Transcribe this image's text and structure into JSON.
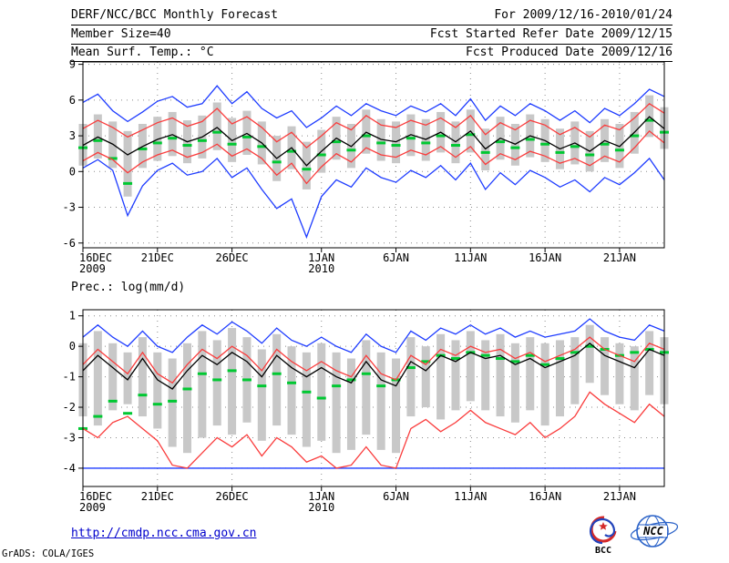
{
  "header": {
    "title": "DERF/NCC/BCC Monthly Forecast",
    "for_range": "For 2009/12/16-2010/01/24",
    "member_size": "Member Size=40",
    "fcst_started": "Fcst Started Refer Date 2009/12/15",
    "fcst_produced": "Fcst Produced Date 2009/12/16"
  },
  "footer": {
    "url": "http://cmdp.ncc.cma.gov.cn",
    "credit": "GrADS: COLA/IGES",
    "bcc_label": "BCC",
    "ncc_label": "NCC"
  },
  "colors": {
    "blue": "#1e3cff",
    "red": "#fa3c3c",
    "green": "#00c832",
    "black": "#000000",
    "gray": "#c8c8c8",
    "grid": "#8a8a8a",
    "url_blue": "#0000cc"
  },
  "chart_data": [
    {
      "id": "surface-temperature",
      "type": "line",
      "title": "Mean Surf. Temp.: °C",
      "ylabel": "°C",
      "ylim": [
        -6,
        9
      ],
      "yticks": [
        -6,
        -3,
        0,
        3,
        6,
        9
      ],
      "grid": true,
      "n_days": 40,
      "xticks": [
        {
          "day": 0,
          "label": "16DEC",
          "sublabel": "2009"
        },
        {
          "day": 5,
          "label": "21DEC",
          "sublabel": ""
        },
        {
          "day": 10,
          "label": "26DEC",
          "sublabel": ""
        },
        {
          "day": 16,
          "label": "1JAN",
          "sublabel": "2010"
        },
        {
          "day": 21,
          "label": "6JAN",
          "sublabel": ""
        },
        {
          "day": 26,
          "label": "11JAN",
          "sublabel": ""
        },
        {
          "day": 31,
          "label": "16JAN",
          "sublabel": ""
        },
        {
          "day": 36,
          "label": "21JAN",
          "sublabel": ""
        }
      ],
      "bars": {
        "name": "ensemble-spread",
        "color": "gray",
        "top": [
          4.0,
          4.8,
          4.2,
          3.4,
          4.0,
          4.6,
          5.0,
          4.3,
          4.7,
          5.8,
          4.5,
          5.1,
          4.2,
          3.0,
          3.8,
          2.5,
          3.5,
          4.6,
          4.0,
          5.2,
          4.4,
          4.2,
          4.8,
          4.4,
          5.0,
          4.2,
          5.2,
          3.6,
          4.6,
          4.0,
          4.8,
          4.4,
          3.6,
          4.2,
          3.4,
          4.4,
          4.0,
          5.0,
          6.4,
          5.4
        ],
        "bottom": [
          0.5,
          1.1,
          0.3,
          -2.1,
          0.3,
          0.9,
          1.3,
          0.7,
          1.1,
          1.8,
          0.8,
          1.4,
          0.6,
          -0.8,
          0.2,
          -1.5,
          -0.1,
          1.0,
          0.3,
          1.5,
          0.9,
          0.7,
          1.3,
          0.9,
          1.6,
          0.7,
          1.6,
          0.1,
          1.0,
          0.5,
          1.2,
          0.8,
          0.2,
          0.6,
          0.0,
          0.8,
          0.3,
          1.5,
          2.9,
          1.9
        ]
      },
      "markers": {
        "name": "observation",
        "color": "green",
        "values": [
          2.0,
          2.6,
          1.1,
          -1.0,
          1.9,
          2.4,
          2.8,
          2.2,
          2.6,
          3.3,
          2.3,
          2.9,
          2.1,
          0.8,
          1.7,
          0.2,
          1.4,
          2.5,
          1.8,
          3.0,
          2.4,
          2.2,
          2.8,
          2.4,
          3.0,
          2.2,
          3.1,
          1.6,
          2.5,
          2.0,
          2.7,
          2.3,
          1.6,
          2.1,
          1.4,
          2.3,
          1.8,
          3.0,
          4.3,
          3.3
        ]
      },
      "series": [
        {
          "name": "ensemble-max",
          "color": "blue",
          "values": [
            5.8,
            6.5,
            5.1,
            4.2,
            5.0,
            5.9,
            6.3,
            5.4,
            5.7,
            7.2,
            5.7,
            6.7,
            5.3,
            4.5,
            5.1,
            3.7,
            4.5,
            5.5,
            4.7,
            5.7,
            5.1,
            4.7,
            5.5,
            5.0,
            5.7,
            4.7,
            6.1,
            4.3,
            5.5,
            4.7,
            5.7,
            5.1,
            4.3,
            5.1,
            4.1,
            5.3,
            4.7,
            5.7,
            6.9,
            6.3
          ]
        },
        {
          "name": "upper-quartile",
          "color": "red",
          "values": [
            3.6,
            4.3,
            3.7,
            2.9,
            3.5,
            4.1,
            4.5,
            3.8,
            4.2,
            5.3,
            4.0,
            4.6,
            3.7,
            2.5,
            3.3,
            2.0,
            3.0,
            4.1,
            3.5,
            4.7,
            3.9,
            3.7,
            4.3,
            3.9,
            4.5,
            3.7,
            4.7,
            3.1,
            4.1,
            3.5,
            4.3,
            3.9,
            3.1,
            3.7,
            2.9,
            3.9,
            3.5,
            4.5,
            5.7,
            4.9
          ]
        },
        {
          "name": "ensemble-mean",
          "color": "black",
          "values": [
            2.2,
            2.9,
            2.3,
            1.4,
            2.1,
            2.7,
            3.1,
            2.5,
            2.9,
            3.7,
            2.6,
            3.2,
            2.4,
            1.1,
            2.0,
            0.5,
            1.7,
            2.8,
            2.1,
            3.3,
            2.7,
            2.5,
            3.1,
            2.7,
            3.3,
            2.5,
            3.4,
            1.9,
            2.8,
            2.3,
            3.0,
            2.6,
            1.9,
            2.4,
            1.7,
            2.6,
            2.1,
            3.3,
            4.6,
            3.6
          ]
        },
        {
          "name": "lower-quartile",
          "color": "red",
          "values": [
            0.9,
            1.6,
            1.0,
            -0.1,
            0.8,
            1.4,
            1.8,
            1.2,
            1.6,
            2.3,
            1.3,
            1.9,
            1.1,
            -0.3,
            0.7,
            -1.0,
            0.4,
            1.5,
            0.8,
            2.0,
            1.4,
            1.2,
            1.8,
            1.4,
            2.1,
            1.2,
            2.1,
            0.6,
            1.5,
            1.0,
            1.7,
            1.3,
            0.7,
            1.1,
            0.5,
            1.3,
            0.8,
            2.0,
            3.4,
            2.4
          ]
        },
        {
          "name": "ensemble-min",
          "color": "blue",
          "values": [
            0.3,
            1.0,
            0.1,
            -3.7,
            -1.2,
            0.1,
            0.7,
            -0.3,
            0.0,
            1.1,
            -0.5,
            0.3,
            -1.5,
            -3.1,
            -2.3,
            -5.5,
            -2.1,
            -0.7,
            -1.3,
            0.3,
            -0.5,
            -0.9,
            0.1,
            -0.5,
            0.5,
            -0.7,
            0.7,
            -1.5,
            -0.1,
            -1.1,
            0.1,
            -0.5,
            -1.3,
            -0.7,
            -1.7,
            -0.5,
            -1.1,
            -0.1,
            1.1,
            -0.7
          ]
        }
      ]
    },
    {
      "id": "precipitation",
      "type": "line",
      "title": "Prec.: log(mm/d)",
      "ylabel": "log(mm/d)",
      "ylim": [
        -4,
        1
      ],
      "yticks": [
        -4,
        -3,
        -2,
        -1,
        0,
        1
      ],
      "grid": true,
      "n_days": 40,
      "xticks": [
        {
          "day": 0,
          "label": "16DEC",
          "sublabel": "2009"
        },
        {
          "day": 5,
          "label": "21DEC",
          "sublabel": ""
        },
        {
          "day": 10,
          "label": "26DEC",
          "sublabel": ""
        },
        {
          "day": 16,
          "label": "1JAN",
          "sublabel": "2010"
        },
        {
          "day": 21,
          "label": "6JAN",
          "sublabel": ""
        },
        {
          "day": 26,
          "label": "11JAN",
          "sublabel": ""
        },
        {
          "day": 31,
          "label": "16JAN",
          "sublabel": ""
        },
        {
          "day": 36,
          "label": "21JAN",
          "sublabel": ""
        }
      ],
      "bars": {
        "name": "ensemble-spread",
        "color": "gray",
        "top": [
          0.1,
          0.5,
          0.1,
          -0.2,
          0.3,
          -0.2,
          -0.4,
          0.1,
          0.5,
          0.2,
          0.6,
          0.3,
          -0.1,
          0.4,
          0.0,
          -0.2,
          0.1,
          -0.2,
          -0.4,
          0.2,
          -0.2,
          -0.4,
          0.3,
          0.0,
          0.4,
          0.2,
          0.5,
          0.2,
          0.4,
          0.1,
          0.3,
          0.1,
          0.2,
          0.3,
          0.7,
          0.3,
          0.1,
          0.0,
          0.5,
          0.3
        ],
        "bottom": [
          -2.3,
          -2.6,
          -2.1,
          -1.9,
          -2.3,
          -2.7,
          -3.3,
          -3.5,
          -3.0,
          -2.6,
          -2.9,
          -2.5,
          -3.1,
          -2.6,
          -2.9,
          -3.3,
          -3.1,
          -3.5,
          -3.4,
          -2.9,
          -3.4,
          -3.5,
          -2.3,
          -2.0,
          -2.4,
          -2.1,
          -1.8,
          -2.1,
          -2.3,
          -2.5,
          -2.1,
          -2.6,
          -2.3,
          -1.9,
          -1.2,
          -1.6,
          -1.9,
          -2.1,
          -1.6,
          -1.9
        ]
      },
      "markers": {
        "name": "observation",
        "color": "green",
        "values": [
          -2.7,
          -2.3,
          -1.8,
          -2.2,
          -1.6,
          -1.9,
          -1.8,
          -1.4,
          -0.9,
          -1.1,
          -0.8,
          -1.1,
          -1.3,
          -0.9,
          -1.2,
          -1.5,
          -1.7,
          -1.3,
          -1.1,
          -0.9,
          -1.3,
          -1.1,
          -0.7,
          -0.5,
          -0.3,
          -0.4,
          -0.2,
          -0.3,
          -0.4,
          -0.5,
          -0.3,
          -0.6,
          -0.4,
          -0.2,
          0.0,
          -0.1,
          -0.3,
          -0.2,
          -0.1,
          -0.2
        ]
      },
      "series": [
        {
          "name": "ensemble-max",
          "color": "blue",
          "values": [
            0.3,
            0.7,
            0.3,
            0.0,
            0.5,
            0.0,
            -0.2,
            0.3,
            0.7,
            0.4,
            0.8,
            0.5,
            0.1,
            0.6,
            0.2,
            0.0,
            0.3,
            0.0,
            -0.2,
            0.4,
            0.0,
            -0.2,
            0.5,
            0.2,
            0.6,
            0.4,
            0.7,
            0.4,
            0.6,
            0.3,
            0.5,
            0.3,
            0.4,
            0.5,
            0.9,
            0.5,
            0.3,
            0.2,
            0.7,
            0.5
          ]
        },
        {
          "name": "upper-quartile",
          "color": "red",
          "values": [
            -0.6,
            -0.1,
            -0.5,
            -0.9,
            -0.2,
            -0.9,
            -1.2,
            -0.6,
            -0.1,
            -0.4,
            0.0,
            -0.3,
            -0.8,
            -0.1,
            -0.5,
            -0.8,
            -0.5,
            -0.8,
            -1.0,
            -0.3,
            -0.9,
            -1.1,
            -0.3,
            -0.6,
            -0.1,
            -0.3,
            0.0,
            -0.2,
            -0.1,
            -0.4,
            -0.2,
            -0.5,
            -0.3,
            -0.1,
            0.3,
            -0.1,
            -0.3,
            -0.5,
            0.1,
            -0.1
          ]
        },
        {
          "name": "ensemble-mean",
          "color": "black",
          "values": [
            -0.8,
            -0.3,
            -0.7,
            -1.1,
            -0.4,
            -1.1,
            -1.4,
            -0.8,
            -0.3,
            -0.6,
            -0.2,
            -0.5,
            -1.0,
            -0.3,
            -0.7,
            -1.0,
            -0.7,
            -1.0,
            -1.2,
            -0.5,
            -1.1,
            -1.3,
            -0.5,
            -0.8,
            -0.3,
            -0.5,
            -0.2,
            -0.4,
            -0.3,
            -0.6,
            -0.4,
            -0.7,
            -0.5,
            -0.3,
            0.1,
            -0.3,
            -0.5,
            -0.7,
            -0.1,
            -0.3
          ]
        },
        {
          "name": "lower-quartile",
          "color": "red",
          "values": [
            -2.7,
            -3.0,
            -2.5,
            -2.3,
            -2.7,
            -3.1,
            -3.9,
            -4.0,
            -3.5,
            -3.0,
            -3.3,
            -2.9,
            -3.6,
            -3.0,
            -3.3,
            -3.8,
            -3.6,
            -4.0,
            -3.9,
            -3.3,
            -3.9,
            -4.0,
            -2.7,
            -2.4,
            -2.8,
            -2.5,
            -2.1,
            -2.5,
            -2.7,
            -2.9,
            -2.5,
            -3.0,
            -2.7,
            -2.3,
            -1.5,
            -1.9,
            -2.2,
            -2.5,
            -1.9,
            -2.3
          ]
        },
        {
          "name": "ensemble-min",
          "color": "blue",
          "values": [
            -4.0,
            -4.0,
            -4.0,
            -4.0,
            -4.0,
            -4.0,
            -4.0,
            -4.0,
            -4.0,
            -4.0,
            -4.0,
            -4.0,
            -4.0,
            -4.0,
            -4.0,
            -4.0,
            -4.0,
            -4.0,
            -4.0,
            -4.0,
            -4.0,
            -4.0,
            -4.0,
            -4.0,
            -4.0,
            -4.0,
            -4.0,
            -4.0,
            -4.0,
            -4.0,
            -4.0,
            -4.0,
            -4.0,
            -4.0,
            -4.0,
            -4.0,
            -4.0,
            -4.0,
            -4.0,
            -4.0
          ]
        }
      ]
    }
  ]
}
